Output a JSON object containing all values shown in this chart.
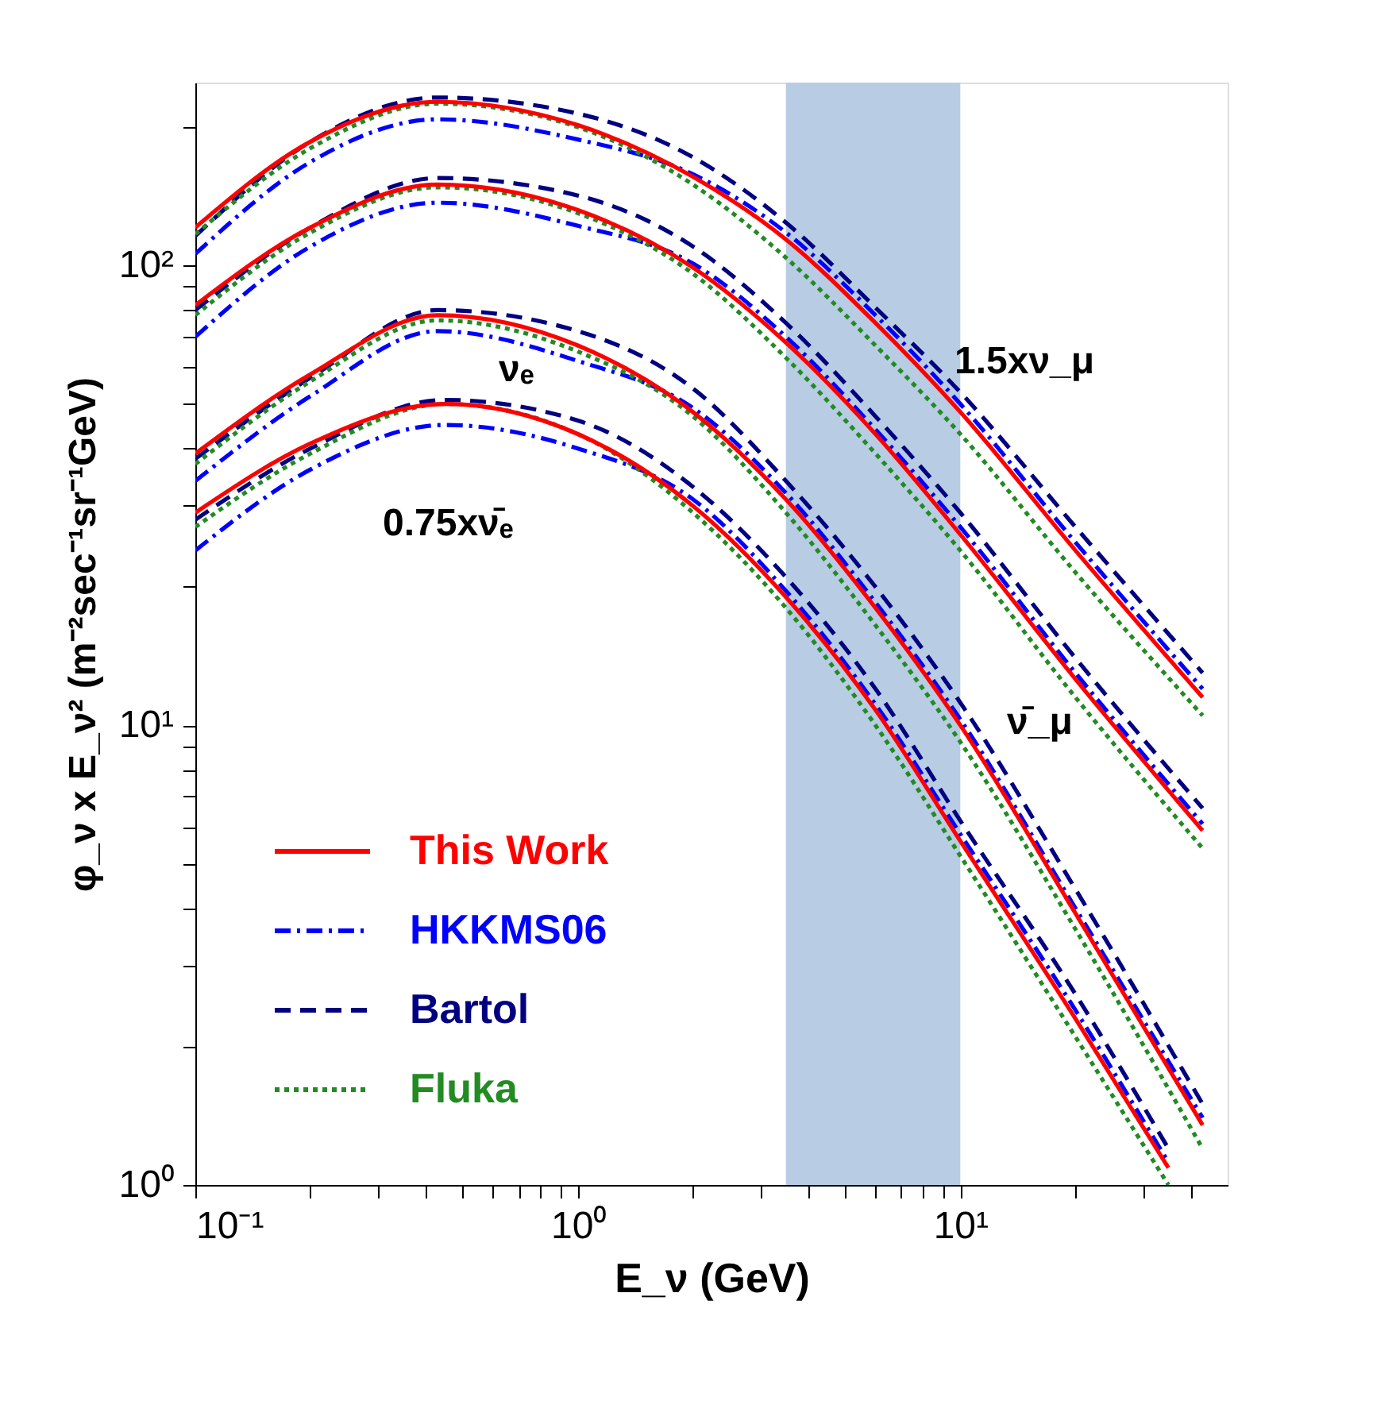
{
  "chart_data": {
    "type": "line",
    "xlabel": "E_ν (GeV)",
    "ylabel": "φ_ν x E_ν² (m⁻²sec⁻¹sr⁻¹GeV)",
    "log": "xy",
    "grid": false,
    "legend": "bottom left",
    "xlim": [
      0.1,
      50
    ],
    "ylim": [
      1,
      250
    ],
    "xticks": [
      {
        "value": 0.1,
        "label": "10⁻¹"
      },
      {
        "value": 0.2,
        "label": null
      },
      {
        "value": 0.3,
        "label": null
      },
      {
        "value": 0.4,
        "label": null
      },
      {
        "value": 0.5,
        "label": null
      },
      {
        "value": 0.6,
        "label": null
      },
      {
        "value": 0.7,
        "label": null
      },
      {
        "value": 0.8,
        "label": null
      },
      {
        "value": 0.9,
        "label": null
      },
      {
        "value": 1,
        "label": "10⁰"
      },
      {
        "value": 2,
        "label": null
      },
      {
        "value": 3,
        "label": null
      },
      {
        "value": 4,
        "label": null
      },
      {
        "value": 5,
        "label": null
      },
      {
        "value": 6,
        "label": null
      },
      {
        "value": 7,
        "label": null
      },
      {
        "value": 8,
        "label": null
      },
      {
        "value": 9,
        "label": null
      },
      {
        "value": 10,
        "label": "10¹"
      },
      {
        "value": 20,
        "label": null
      },
      {
        "value": 30,
        "label": null
      },
      {
        "value": 40,
        "label": null
      }
    ],
    "yticks": [
      {
        "value": 1,
        "label": "10⁰"
      },
      {
        "value": 2,
        "label": null
      },
      {
        "value": 3,
        "label": null
      },
      {
        "value": 4,
        "label": null
      },
      {
        "value": 5,
        "label": null
      },
      {
        "value": 6,
        "label": null
      },
      {
        "value": 7,
        "label": null
      },
      {
        "value": 8,
        "label": null
      },
      {
        "value": 9,
        "label": null
      },
      {
        "value": 10,
        "label": "10¹"
      },
      {
        "value": 20,
        "label": null
      },
      {
        "value": 30,
        "label": null
      },
      {
        "value": 40,
        "label": null
      },
      {
        "value": 50,
        "label": null
      },
      {
        "value": 60,
        "label": null
      },
      {
        "value": 70,
        "label": null
      },
      {
        "value": 80,
        "label": null
      },
      {
        "value": 90,
        "label": null
      },
      {
        "value": 100,
        "label": "10²"
      },
      {
        "value": 200,
        "label": null
      }
    ],
    "bands": [
      {
        "axis": "x",
        "from": 3.5,
        "to": 10,
        "color": "#b8cce4"
      }
    ],
    "annotations": [
      "1.5xν_μ",
      "ν̄_μ",
      "νₑ",
      "0.75xν̄ₑ"
    ],
    "series": [
      {
        "name": "This Work",
        "color": "#ff0000",
        "line_style": "solid",
        "x": [
          0.1,
          0.2,
          0.43,
          1,
          2,
          3.5,
          6,
          10,
          20,
          43
        ],
        "values": [
          121,
          186,
          227,
          202,
          156,
          114,
          75,
          48,
          24,
          11.5
        ]
      },
      {
        "name": "HKKMS06",
        "color": "#0000ff",
        "line_style": "dashdot",
        "x": [
          0.1,
          0.2,
          0.43,
          1,
          2,
          3.5,
          6,
          10,
          20,
          43
        ],
        "values": [
          106,
          168,
          208,
          188,
          158,
          118,
          78,
          50,
          25,
          12
        ]
      },
      {
        "name": "Bartol",
        "color": "#000080",
        "line_style": "dashed",
        "x": [
          0.1,
          0.2,
          0.43,
          1,
          2,
          3.5,
          6,
          10,
          20,
          43
        ],
        "values": [
          116,
          186,
          232,
          214,
          172,
          124,
          81,
          53,
          27,
          13
        ]
      },
      {
        "name": "Fluka",
        "color": "#228b22",
        "line_style": "dotted",
        "x": [
          0.1,
          0.2,
          0.43,
          1,
          2,
          3.5,
          6,
          10,
          20,
          43
        ],
        "values": [
          117,
          180,
          225,
          200,
          150,
          104,
          67,
          43,
          21.5,
          10.5
        ]
      },
      {
        "color": "#0000ff",
        "line_style": "dashdot",
        "x": [
          0.1,
          0.2,
          0.43,
          1,
          2,
          3.5,
          6,
          10,
          20,
          43
        ],
        "values": [
          70,
          110,
          137,
          122,
          101,
          70,
          44,
          27,
          13,
          6.1
        ]
      },
      {
        "color": "#000080",
        "line_style": "dashed",
        "x": [
          0.1,
          0.2,
          0.43,
          1,
          2,
          3.5,
          6,
          10,
          20,
          43
        ],
        "values": [
          80,
          121,
          155,
          142,
          110,
          75,
          47,
          29,
          14,
          6.6
        ]
      },
      {
        "color": "#228b22",
        "line_style": "dotted",
        "x": [
          0.1,
          0.2,
          0.43,
          1,
          2,
          3.5,
          6,
          10,
          20,
          43
        ],
        "values": [
          78,
          118,
          148,
          130,
          96,
          63,
          39,
          24,
          11.5,
          5.4
        ]
      },
      {
        "color": "#ff0000",
        "line_style": "solid",
        "x": [
          0.1,
          0.2,
          0.43,
          1,
          2,
          3.5,
          6,
          10,
          20,
          43
        ],
        "values": [
          82,
          121,
          150,
          132,
          99,
          68,
          43,
          26,
          12.6,
          5.9
        ]
      },
      {
        "color": "#0000ff",
        "line_style": "dashdot",
        "x": [
          0.1,
          0.2,
          0.43,
          1,
          2,
          3.5,
          6,
          10,
          20,
          43
        ],
        "values": [
          34,
          52,
          72,
          62,
          49,
          32,
          18.5,
          10.3,
          4.0,
          1.4
        ]
      },
      {
        "color": "#000080",
        "line_style": "dashed",
        "x": [
          0.1,
          0.2,
          0.43,
          1,
          2,
          3.5,
          6,
          10,
          20,
          43
        ],
        "values": [
          38,
          57,
          80,
          72,
          54,
          34,
          20,
          11.2,
          4.4,
          1.5
        ]
      },
      {
        "color": "#228b22",
        "line_style": "dotted",
        "x": [
          0.1,
          0.2,
          0.43,
          1,
          2,
          3.5,
          6,
          10,
          20,
          43
        ],
        "values": [
          37,
          56,
          76,
          65,
          47,
          29,
          16.5,
          9.2,
          3.6,
          1.2
        ]
      },
      {
        "color": "#ff0000",
        "line_style": "solid",
        "x": [
          0.1,
          0.2,
          0.43,
          1,
          2,
          3.5,
          6,
          10,
          20,
          43
        ],
        "values": [
          39,
          58,
          78,
          67,
          48,
          31,
          18,
          10,
          3.9,
          1.35
        ]
      },
      {
        "color": "#0000ff",
        "line_style": "dashdot",
        "x": [
          0.1,
          0.2,
          0.45,
          1,
          2,
          3.5,
          6,
          10,
          20,
          35
        ],
        "values": [
          24,
          36,
          45,
          40,
          31,
          19.6,
          11.1,
          5.8,
          2.4,
          1.12
        ]
      },
      {
        "color": "#000080",
        "line_style": "dashed",
        "x": [
          0.1,
          0.2,
          0.45,
          1,
          2,
          3.5,
          6,
          10,
          20,
          35
        ],
        "values": [
          28,
          40,
          51,
          46,
          33,
          21,
          12,
          6.2,
          2.6,
          1.2
        ]
      },
      {
        "color": "#228b22",
        "line_style": "dotted",
        "x": [
          0.1,
          0.2,
          0.45,
          1,
          2,
          3.5,
          6,
          10,
          20,
          35
        ],
        "values": [
          27,
          39,
          50,
          43,
          29,
          18,
          10,
          5.2,
          2.1,
          1.0
        ]
      },
      {
        "color": "#ff0000",
        "line_style": "solid",
        "x": [
          0.1,
          0.2,
          0.45,
          1,
          2,
          3.5,
          6,
          10,
          20,
          35
        ],
        "values": [
          29,
          41,
          50,
          43,
          30,
          19,
          10.8,
          5.6,
          2.3,
          1.09
        ]
      }
    ]
  }
}
